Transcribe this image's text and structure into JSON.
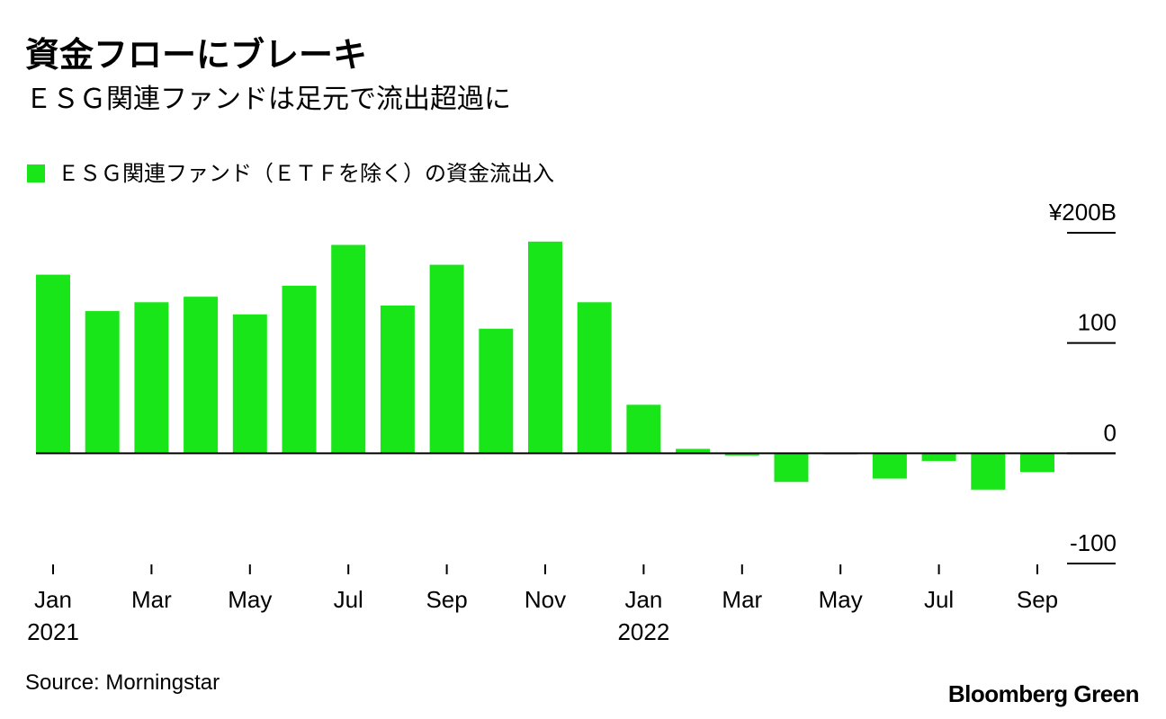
{
  "header": {
    "title": "資金フローにブレーキ",
    "subtitle": "ＥＳＧ関連ファンドは足元で流出超過に"
  },
  "legend": {
    "label": "ＥＳＧ関連ファンド（ＥＴＦを除く）の資金流出入",
    "color": "#19e619"
  },
  "footer": {
    "source": "Source: Morningstar",
    "brand": "Bloomberg Green"
  },
  "chart_data": {
    "type": "bar",
    "title": "ＥＳＧ関連ファンド（ＥＴＦを除く）の資金流出入",
    "unit": "¥ billion",
    "categories": [
      "Jan 2021",
      "Feb 2021",
      "Mar 2021",
      "Apr 2021",
      "May 2021",
      "Jun 2021",
      "Jul 2021",
      "Aug 2021",
      "Sep 2021",
      "Oct 2021",
      "Nov 2021",
      "Dec 2021",
      "Jan 2022",
      "Feb 2022",
      "Mar 2022",
      "Apr 2022",
      "May 2022",
      "Jun 2022",
      "Jul 2022",
      "Aug 2022",
      "Sep 2022"
    ],
    "values": [
      162,
      129,
      137,
      142,
      126,
      152,
      189,
      134,
      171,
      113,
      192,
      137,
      44,
      4,
      -2,
      -26,
      -1,
      -23,
      -7,
      -33,
      -17
    ],
    "ylim": [
      -100,
      200
    ],
    "yticks": [
      200,
      100,
      0,
      -100
    ],
    "ytick_labels": [
      "¥200B",
      "100",
      "0",
      "-100"
    ],
    "xtick_labels": [
      {
        "index": 0,
        "label": "Jan",
        "year": "2021"
      },
      {
        "index": 2,
        "label": "Mar",
        "year": ""
      },
      {
        "index": 4,
        "label": "May",
        "year": ""
      },
      {
        "index": 6,
        "label": "Jul",
        "year": ""
      },
      {
        "index": 8,
        "label": "Sep",
        "year": ""
      },
      {
        "index": 10,
        "label": "Nov",
        "year": ""
      },
      {
        "index": 12,
        "label": "Jan",
        "year": "2022"
      },
      {
        "index": 14,
        "label": "Mar",
        "year": ""
      },
      {
        "index": 16,
        "label": "May",
        "year": ""
      },
      {
        "index": 18,
        "label": "Jul",
        "year": ""
      },
      {
        "index": 20,
        "label": "Sep",
        "year": ""
      }
    ],
    "bar_color": "#19e619",
    "zero_line_color": "#000000",
    "xlabel": "",
    "ylabel": "",
    "grid": false
  }
}
